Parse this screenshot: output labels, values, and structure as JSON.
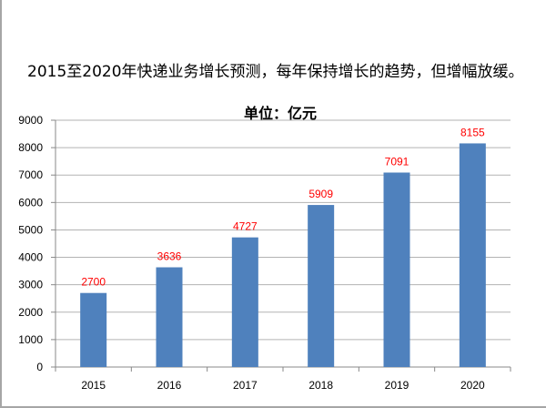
{
  "headline": "2015至2020年快递业务增长预测，每年保持增长的趋势，但增幅放缓。",
  "chart_data": {
    "type": "bar",
    "title": "单位：亿元",
    "categories": [
      "2015",
      "2016",
      "2017",
      "2018",
      "2019",
      "2020"
    ],
    "values": [
      2700,
      3636,
      4727,
      5909,
      7091,
      8155
    ],
    "xlabel": "",
    "ylabel": "",
    "ylim": [
      0,
      9000
    ],
    "yticks": [
      0,
      1000,
      2000,
      3000,
      4000,
      5000,
      6000,
      7000,
      8000,
      9000
    ],
    "grid": true,
    "legend": "none",
    "bar_color": "#4f81bd",
    "label_color": "#ff0000"
  }
}
